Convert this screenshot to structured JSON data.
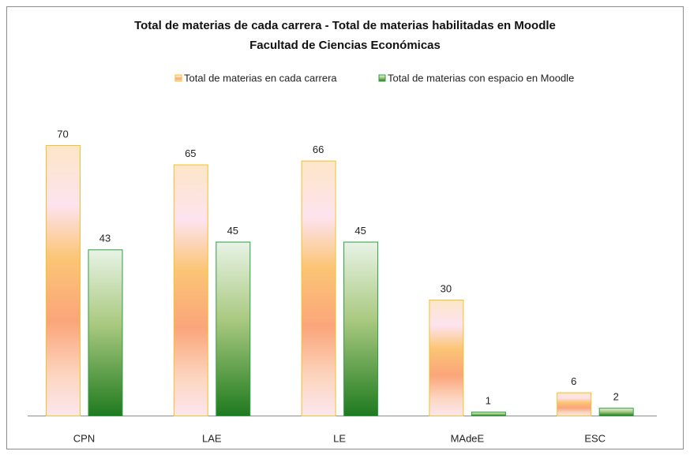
{
  "chart_data": {
    "type": "bar",
    "title": "Total de materias de cada carrera - Total de materias habilitadas en Moodle",
    "subtitle": "Facultad de Ciencias Económicas",
    "categories": [
      "CPN",
      "LAE",
      "LE",
      "MAdeE",
      "ESC"
    ],
    "series": [
      {
        "name": "Total de materias  en cada carrera",
        "color": "#f2c12e",
        "values": [
          70,
          65,
          66,
          30,
          6
        ]
      },
      {
        "name": "Total de materias con espacio en Moodle",
        "color": "#2e9e44",
        "values": [
          43,
          45,
          45,
          1,
          2
        ]
      }
    ],
    "legend": "top"
  }
}
